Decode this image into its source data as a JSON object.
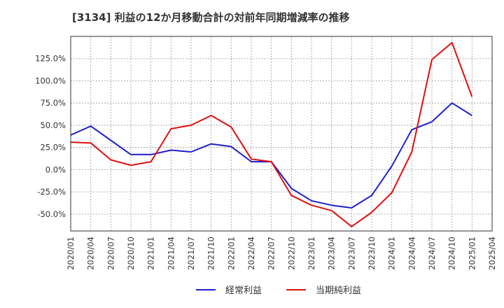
{
  "chart_data": {
    "type": "line",
    "title": "[3134]  利益の12か月移動合計の対前年同期増減率の推移",
    "xlabel": "",
    "ylabel": "",
    "ylim": [
      -69,
      150
    ],
    "yticks": [
      -50,
      -25,
      0,
      25,
      50,
      75,
      100,
      125
    ],
    "ytick_labels": [
      "-50.0%",
      "-25.0%",
      "0.0%",
      "25.0%",
      "50.0%",
      "75.0%",
      "100.0%",
      "125.0%"
    ],
    "x_tick_labels": [
      "2020/01",
      "2020/04",
      "2020/07",
      "2020/10",
      "2021/01",
      "2021/04",
      "2021/07",
      "2021/10",
      "2022/01",
      "2022/04",
      "2022/07",
      "2022/10",
      "2023/01",
      "2023/04",
      "2023/07",
      "2023/10",
      "2024/01",
      "2024/04",
      "2024/07",
      "2024/10",
      "2025/01",
      "2025/04"
    ],
    "grid": true,
    "legend_position": "bottom-center",
    "series": [
      {
        "name": "経常利益",
        "color": "#1f1fcc",
        "values": [
          39,
          49,
          33,
          17,
          17,
          22,
          20,
          29,
          26,
          9,
          9,
          -21,
          -35,
          -40,
          -43,
          -29,
          4,
          45,
          54,
          75,
          61
        ]
      },
      {
        "name": "当期純利益",
        "color": "#dd1111",
        "values": [
          31,
          30,
          11,
          5,
          9,
          46,
          50,
          61,
          48,
          12,
          9,
          -29,
          -40,
          -46,
          -64,
          -48,
          -26,
          20,
          124,
          143,
          82
        ]
      }
    ]
  }
}
